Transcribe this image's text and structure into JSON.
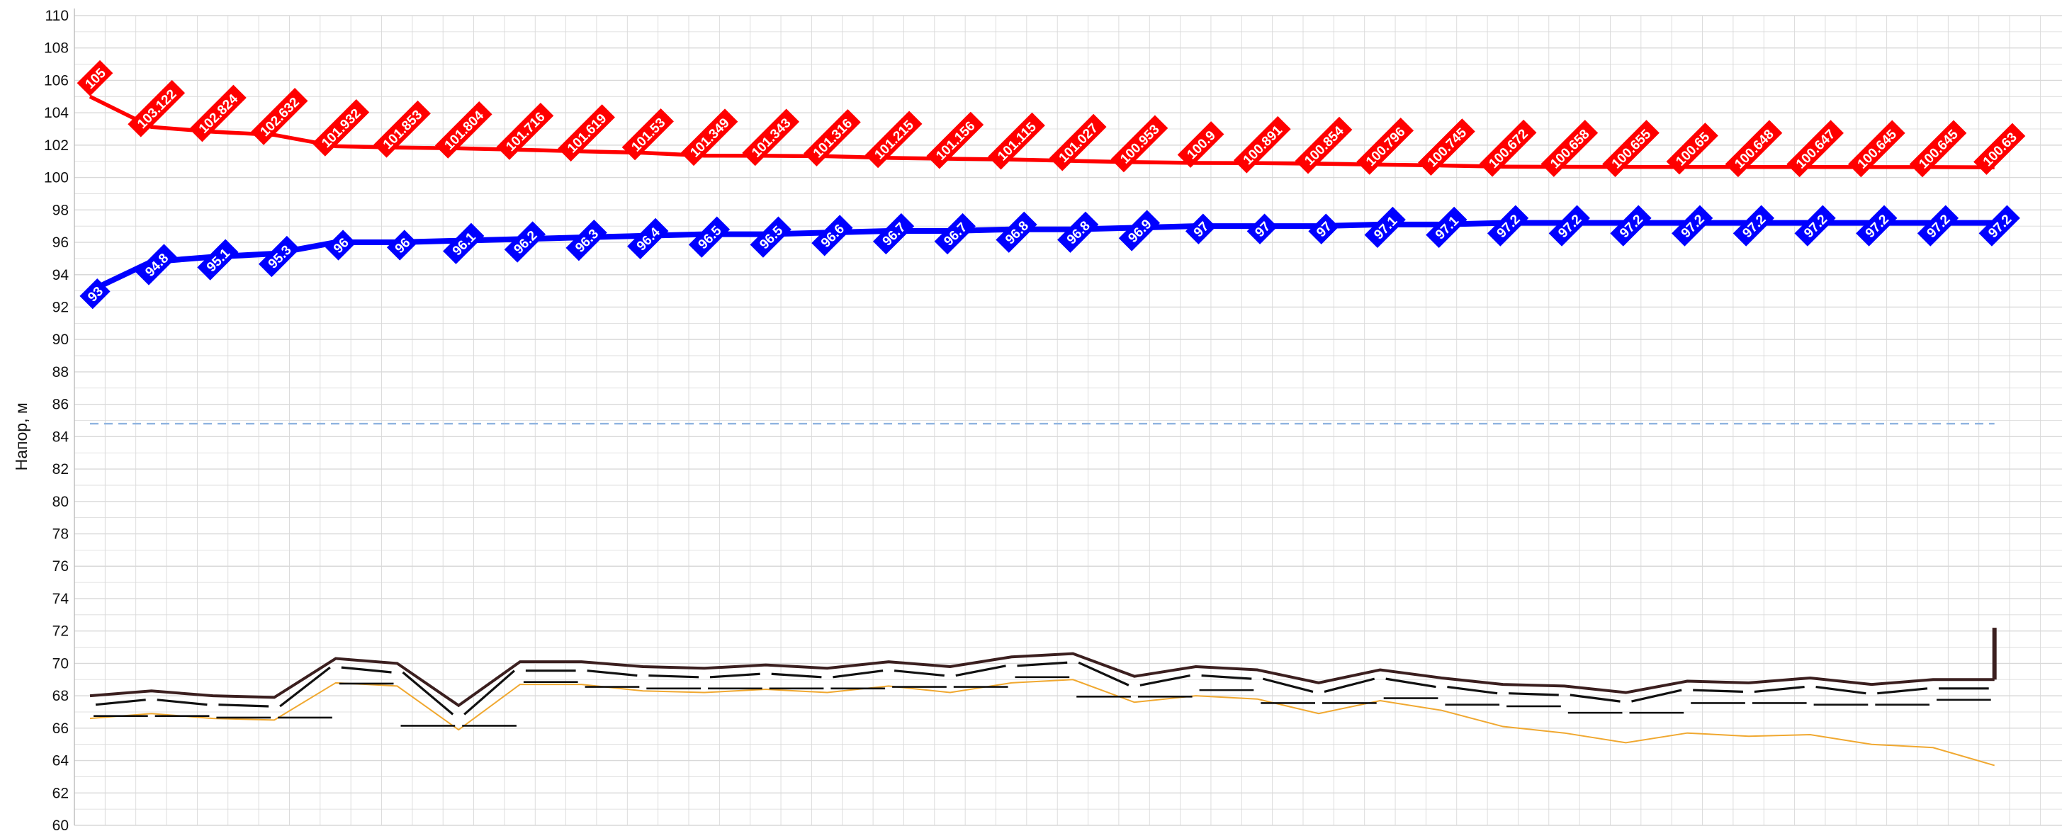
{
  "chart_data": {
    "type": "line",
    "ylabel": "Напор, м",
    "xlabel": "",
    "title": "",
    "ylim": [
      60,
      110
    ],
    "ytick_step": 2,
    "grid": true,
    "x": [
      0,
      1,
      2,
      3,
      4,
      5,
      6,
      7,
      8,
      9,
      10,
      11,
      12,
      13,
      14,
      15,
      16,
      17,
      18,
      19,
      20,
      21,
      22,
      23,
      24,
      25,
      26,
      27,
      28,
      29,
      30,
      31
    ],
    "colors": {
      "supply": "#ff0000",
      "return": "#0000ff",
      "ground": "#3b1f1f",
      "pipe_bottom": "#f0a830",
      "dashed_level": "#8fb4e0",
      "grid": "#d9d9d9"
    },
    "series": [
      {
        "key": "supply",
        "labels": [
          "105",
          "103.122",
          "102.824",
          "102.632",
          "101.932",
          "101.853",
          "101.804",
          "101.716",
          "101.619",
          "101.53",
          "101.349",
          "101.343",
          "101.316",
          "101.215",
          "101.156",
          "101.115",
          "101.027",
          "100.953",
          "100.9",
          "100.891",
          "100.854",
          "100.796",
          "100.745",
          "100.672",
          "100.658",
          "100.655",
          "100.65",
          "100.648",
          "100.647",
          "100.645",
          "100.645",
          "100.63"
        ],
        "values": [
          105,
          103.122,
          102.824,
          102.632,
          101.932,
          101.853,
          101.804,
          101.716,
          101.619,
          101.53,
          101.349,
          101.343,
          101.316,
          101.215,
          101.156,
          101.115,
          101.027,
          100.953,
          100.9,
          100.891,
          100.854,
          100.796,
          100.745,
          100.672,
          100.658,
          100.655,
          100.65,
          100.648,
          100.647,
          100.645,
          100.645,
          100.63
        ]
      },
      {
        "key": "return",
        "labels": [
          "93",
          "94.8",
          "95.1",
          "95.3",
          "96",
          "96",
          "96.1",
          "96.2",
          "96.3",
          "96.4",
          "96.5",
          "96.5",
          "96.6",
          "96.7",
          "96.7",
          "96.8",
          "96.8",
          "96.9",
          "97",
          "97",
          "97",
          "97.1",
          "97.1",
          "97.2",
          "97.2",
          "97.2",
          "97.2",
          "97.2",
          "97.2",
          "97.2",
          "97.2",
          "97.2"
        ],
        "values": [
          93,
          94.8,
          95.1,
          95.3,
          96,
          96,
          96.1,
          96.2,
          96.3,
          96.4,
          96.5,
          96.5,
          96.6,
          96.7,
          96.7,
          96.8,
          96.8,
          96.9,
          97,
          97,
          97,
          97.1,
          97.1,
          97.2,
          97.2,
          97.2,
          97.2,
          97.2,
          97.2,
          97.2,
          97.2,
          97.2
        ]
      },
      {
        "key": "ground",
        "x": [
          0,
          1,
          2,
          3,
          4,
          5,
          6,
          7,
          8,
          9,
          10,
          11,
          12,
          13,
          14,
          15,
          16,
          17,
          18,
          19,
          20,
          21,
          22,
          23,
          24,
          25,
          26,
          27,
          28,
          29,
          30,
          31
        ],
        "values": [
          68,
          68.3,
          68,
          67.9,
          70.3,
          70,
          67.4,
          70.1,
          70.1,
          69.8,
          69.7,
          69.9,
          69.7,
          70.1,
          69.8,
          70.4,
          70.6,
          69.2,
          69.8,
          69.6,
          68.8,
          69.6,
          69.1,
          68.7,
          68.6,
          68.2,
          68.9,
          68.8,
          69.1,
          68.7,
          69,
          69
        ]
      },
      {
        "key": "pipe_bottom",
        "x": [
          0,
          1,
          2,
          3,
          4,
          5,
          6,
          7,
          8,
          9,
          10,
          11,
          12,
          13,
          14,
          15,
          16,
          17,
          18,
          19,
          20,
          21,
          22,
          23,
          24,
          25,
          26,
          27,
          28,
          29,
          30,
          31
        ],
        "values": [
          66.6,
          66.9,
          66.6,
          66.5,
          68.8,
          68.6,
          65.9,
          68.7,
          68.7,
          68.3,
          68.2,
          68.4,
          68.2,
          68.6,
          68.2,
          68.8,
          69,
          67.6,
          68,
          67.8,
          66.9,
          67.7,
          67.1,
          66.1,
          65.7,
          65.1,
          65.7,
          65.5,
          65.6,
          65,
          64.8,
          63.7
        ]
      }
    ],
    "dashed_level": 84.8,
    "end_marker": {
      "x": 31,
      "from": 69,
      "to": 72.2
    }
  }
}
